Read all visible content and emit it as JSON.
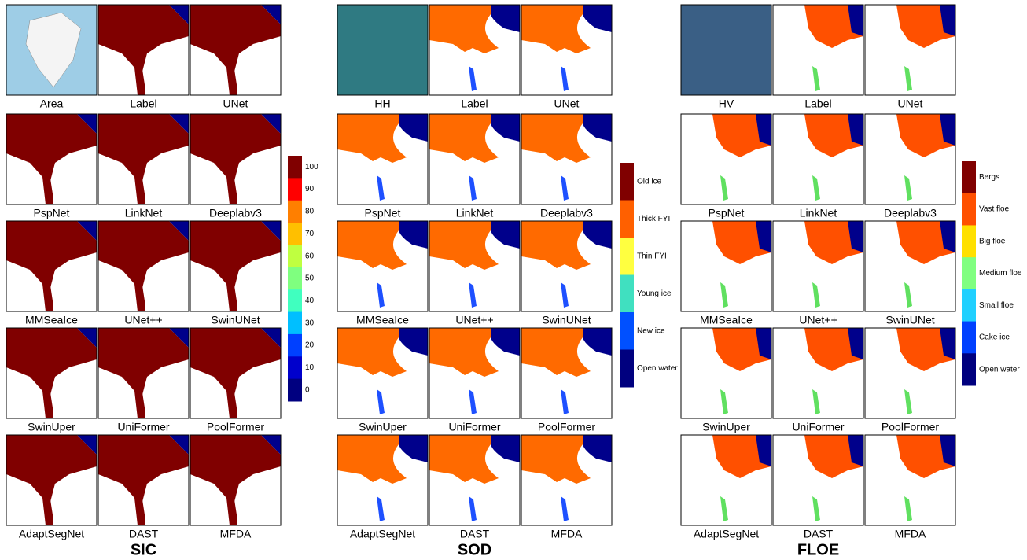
{
  "panels": [
    {
      "title": "SIC",
      "tiles": [
        "Area",
        "Label",
        "UNet",
        "PspNet",
        "LinkNet",
        "Deeplabv3",
        "MMSeaIce",
        "UNet++",
        "SwinUNet",
        "SwinUper",
        "UniFormer",
        "PoolFormer",
        "AdaptSegNet",
        "DAST",
        "MFDA"
      ],
      "colorbar": [
        {
          "label": 100,
          "color": "#800000"
        },
        {
          "label": 90,
          "color": "#ff0000"
        },
        {
          "label": 80,
          "color": "#ff7f00"
        },
        {
          "label": 70,
          "color": "#ffbf00"
        },
        {
          "label": 60,
          "color": "#bfff40"
        },
        {
          "label": 50,
          "color": "#7fff7f"
        },
        {
          "label": 40,
          "color": "#40ffbf"
        },
        {
          "label": 30,
          "color": "#00bfff"
        },
        {
          "label": 20,
          "color": "#0040ff"
        },
        {
          "label": 10,
          "color": "#0000cc"
        },
        {
          "label": 0,
          "color": "#000080"
        }
      ]
    },
    {
      "title": "SOD",
      "tiles": [
        "HH",
        "Label",
        "UNet",
        "PspNet",
        "LinkNet",
        "Deeplabv3",
        "MMSeaIce",
        "UNet++",
        "SwinUNet",
        "SwinUper",
        "UniFormer",
        "PoolFormer",
        "AdaptSegNet",
        "DAST",
        "MFDA"
      ],
      "colorbar": [
        {
          "label": "Old ice",
          "color": "#800000"
        },
        {
          "label": "Thick FYI",
          "color": "#ff6000"
        },
        {
          "label": "Thin FYI",
          "color": "#ffff40"
        },
        {
          "label": "Young ice",
          "color": "#40e0c0"
        },
        {
          "label": "New ice",
          "color": "#0050ff"
        },
        {
          "label": "Open water",
          "color": "#00007f"
        }
      ]
    },
    {
      "title": "FLOE",
      "tiles": [
        "HV",
        "Label",
        "UNet",
        "PspNet",
        "LinkNet",
        "Deeplabv3",
        "MMSeaIce",
        "UNet++",
        "SwinUNet",
        "SwinUper",
        "UniFormer",
        "PoolFormer",
        "AdaptSegNet",
        "DAST",
        "MFDA"
      ],
      "colorbar": [
        {
          "label": "Bergs",
          "color": "#800000"
        },
        {
          "label": "Vast floe",
          "color": "#ff5000"
        },
        {
          "label": "Big floe",
          "color": "#ffe000"
        },
        {
          "label": "Medium floe",
          "color": "#80ff80"
        },
        {
          "label": "Small floe",
          "color": "#20d0ff"
        },
        {
          "label": "Cake ice",
          "color": "#0040ff"
        },
        {
          "label": "Open water",
          "color": "#00007f"
        }
      ]
    }
  ]
}
